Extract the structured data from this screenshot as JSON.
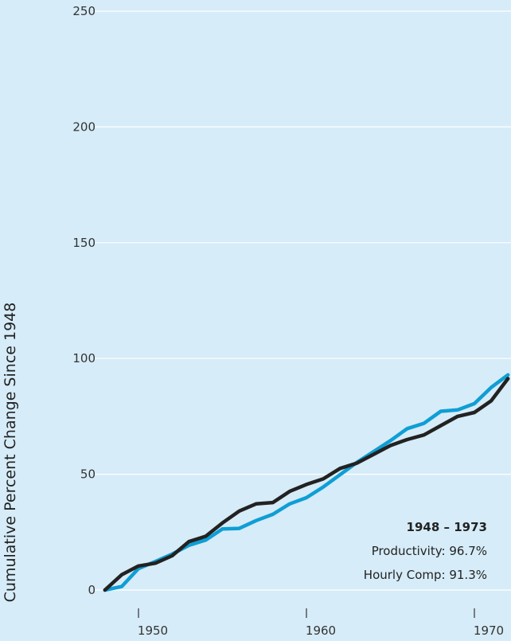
{
  "chart_data": {
    "type": "line",
    "ylabel": "Cumulative Percent Change Since 1948",
    "xlabel": "",
    "title": "",
    "ylim": [
      0,
      250
    ],
    "yticks": [
      0,
      50,
      100,
      150,
      200,
      250
    ],
    "xticks": [
      1950,
      1960,
      1970
    ],
    "grid": "horizontal",
    "series": [
      {
        "name": "Productivity",
        "color": "#0f9ed5",
        "x": [
          1948,
          1949,
          1950,
          1951,
          1952,
          1953,
          1954,
          1955,
          1956,
          1957,
          1958,
          1959,
          1960,
          1961,
          1962,
          1963,
          1964,
          1965,
          1966,
          1967,
          1968,
          1969,
          1970,
          1971,
          1972
        ],
        "y": [
          0,
          1.5,
          9.3,
          12.3,
          15.5,
          19.3,
          21.6,
          26.4,
          26.6,
          30.0,
          32.7,
          37.2,
          39.9,
          44.5,
          49.8,
          55.1,
          59.8,
          64.5,
          69.7,
          72.0,
          77.2,
          77.8,
          80.5,
          87.5,
          92.9
        ]
      },
      {
        "name": "Hourly Comp",
        "color": "#222222",
        "x": [
          1948,
          1949,
          1950,
          1951,
          1952,
          1953,
          1954,
          1955,
          1956,
          1957,
          1958,
          1959,
          1960,
          1961,
          1962,
          1963,
          1964,
          1965,
          1966,
          1967,
          1968,
          1969,
          1970,
          1971,
          1972
        ],
        "y": [
          0,
          6.6,
          10.4,
          11.6,
          14.8,
          20.9,
          23.2,
          29.0,
          34.1,
          37.2,
          37.8,
          42.6,
          45.6,
          48.0,
          52.5,
          54.8,
          58.6,
          62.4,
          65.0,
          67.0,
          71.0,
          75.0,
          76.7,
          81.7,
          91.3
        ]
      }
    ],
    "annotation": {
      "title": "1948 – 1973",
      "line1": "Productivity: 96.7%",
      "line2": "Hourly Comp: 91.3%"
    }
  }
}
